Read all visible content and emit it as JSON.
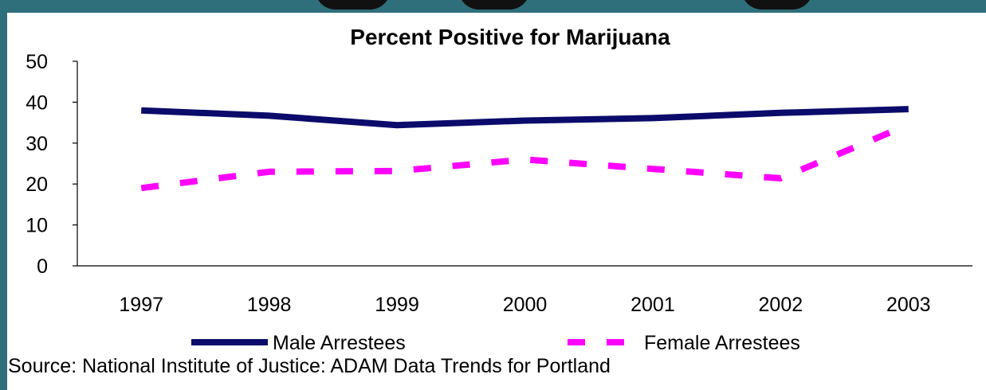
{
  "chart_data": {
    "type": "line",
    "title": "Percent Positive for Marijuana",
    "xlabel": "",
    "ylabel": "",
    "categories": [
      "1997",
      "1998",
      "1999",
      "2000",
      "2001",
      "2002",
      "2003"
    ],
    "ylim": [
      0,
      50
    ],
    "yticks": [
      "0",
      "10",
      "20",
      "30",
      "40",
      "50"
    ],
    "series": [
      {
        "name": "Male Arrestees",
        "values": [
          38,
          36.7,
          34.4,
          35.5,
          36.1,
          37.4,
          38.3
        ],
        "color": "#0b0b6b",
        "style": "solid"
      },
      {
        "name": "Female Arrestees",
        "values": [
          19,
          23,
          23.2,
          26,
          23.7,
          21.4,
          34.5
        ],
        "color": "#ff00ff",
        "style": "dashed"
      }
    ],
    "grid": false,
    "legend": "bottom"
  },
  "source": "Source: National Institute of Justice: ADAM Data Trends for Portland",
  "colors": {
    "frame": "#2f6f7b",
    "header": "#111111"
  }
}
